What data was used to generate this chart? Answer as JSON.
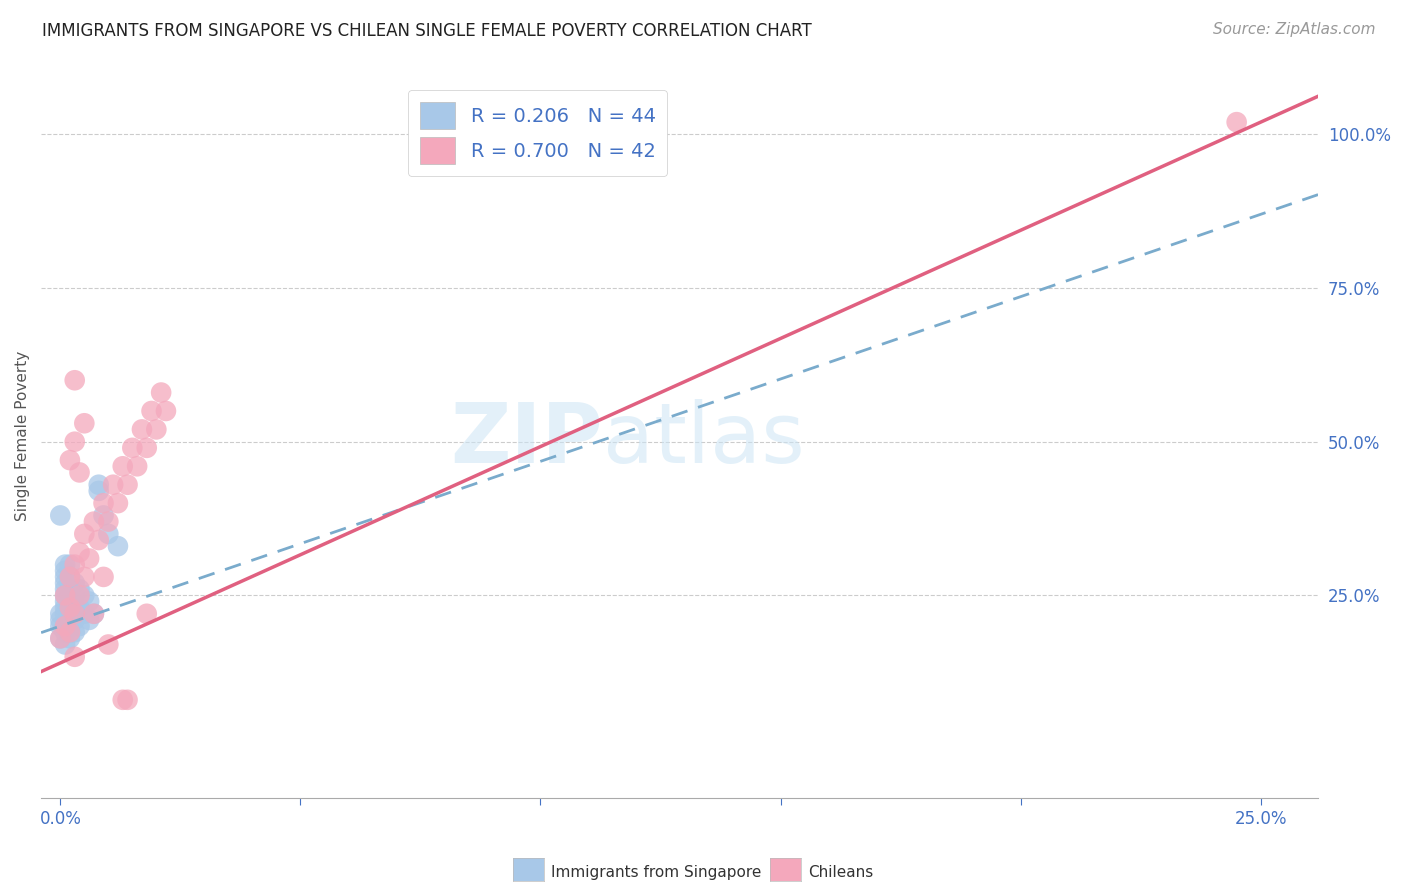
{
  "title": "IMMIGRANTS FROM SINGAPORE VS CHILEAN SINGLE FEMALE POVERTY CORRELATION CHART",
  "source": "Source: ZipAtlas.com",
  "ylabel": "Single Female Poverty",
  "singapore_color": "#a8c8e8",
  "chilean_color": "#f4a8bc",
  "singapore_line_color": "#7aabcc",
  "chilean_line_color": "#e06080",
  "R_singapore": 0.206,
  "N_singapore": 44,
  "R_chilean": 0.7,
  "N_chilean": 42,
  "legend_label_singapore": "Immigrants from Singapore",
  "legend_label_chilean": "Chileans",
  "watermark_zip": "ZIP",
  "watermark_atlas": "atlas",
  "background_color": "#ffffff",
  "grid_color": "#cccccc",
  "x_tick_positions": [
    0.0,
    0.05,
    0.1,
    0.15,
    0.2,
    0.25
  ],
  "x_tick_labels": [
    "0.0%",
    "",
    "",
    "",
    "",
    "25.0%"
  ],
  "y_tick_positions_right": [
    0.25,
    0.5,
    0.75,
    1.0
  ],
  "y_tick_labels_right": [
    "25.0%",
    "50.0%",
    "75.0%",
    "100.0%"
  ],
  "title_fontsize": 12,
  "tick_fontsize": 12,
  "legend_fontsize": 14,
  "source_fontsize": 11,
  "sg_x": [
    0.0,
    0.0,
    0.0,
    0.0,
    0.0,
    0.001,
    0.001,
    0.001,
    0.001,
    0.001,
    0.001,
    0.001,
    0.001,
    0.001,
    0.001,
    0.001,
    0.001,
    0.002,
    0.002,
    0.002,
    0.002,
    0.002,
    0.002,
    0.002,
    0.002,
    0.002,
    0.003,
    0.003,
    0.003,
    0.003,
    0.003,
    0.004,
    0.004,
    0.004,
    0.005,
    0.005,
    0.006,
    0.006,
    0.007,
    0.008,
    0.008,
    0.009,
    0.01,
    0.012
  ],
  "sg_y": [
    0.18,
    0.2,
    0.21,
    0.22,
    0.38,
    0.17,
    0.19,
    0.2,
    0.22,
    0.23,
    0.24,
    0.25,
    0.26,
    0.27,
    0.28,
    0.29,
    0.3,
    0.18,
    0.19,
    0.2,
    0.22,
    0.23,
    0.25,
    0.27,
    0.28,
    0.3,
    0.19,
    0.21,
    0.23,
    0.25,
    0.27,
    0.2,
    0.23,
    0.26,
    0.22,
    0.25,
    0.21,
    0.24,
    0.22,
    0.42,
    0.43,
    0.38,
    0.35,
    0.33
  ],
  "ch_x": [
    0.0,
    0.001,
    0.001,
    0.002,
    0.002,
    0.002,
    0.003,
    0.003,
    0.004,
    0.004,
    0.005,
    0.005,
    0.006,
    0.007,
    0.008,
    0.009,
    0.01,
    0.011,
    0.012,
    0.013,
    0.014,
    0.015,
    0.016,
    0.017,
    0.018,
    0.019,
    0.02,
    0.021,
    0.022,
    0.003,
    0.002,
    0.003,
    0.004,
    0.003,
    0.009,
    0.01,
    0.014,
    0.005,
    0.007,
    0.013,
    0.018,
    0.245
  ],
  "ch_y": [
    0.18,
    0.2,
    0.25,
    0.19,
    0.23,
    0.28,
    0.22,
    0.3,
    0.25,
    0.32,
    0.28,
    0.35,
    0.31,
    0.37,
    0.34,
    0.4,
    0.37,
    0.43,
    0.4,
    0.46,
    0.43,
    0.49,
    0.46,
    0.52,
    0.49,
    0.55,
    0.52,
    0.58,
    0.55,
    0.6,
    0.47,
    0.5,
    0.45,
    0.15,
    0.28,
    0.17,
    0.08,
    0.53,
    0.22,
    0.08,
    0.22,
    1.02
  ]
}
